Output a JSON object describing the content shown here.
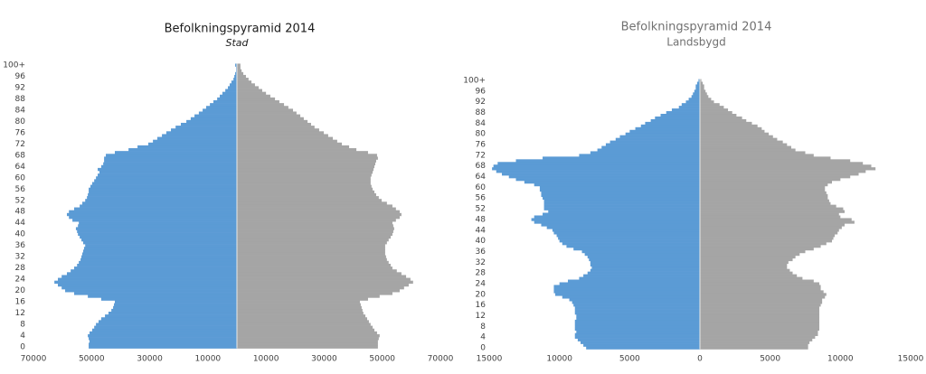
{
  "chart_data": [
    {
      "type": "bar",
      "orientation": "horizontal",
      "title": "Befolkningspyramid 2014",
      "subtitle": "Stad",
      "categories": [
        "0",
        null,
        null,
        null,
        "4",
        null,
        null,
        null,
        "8",
        null,
        null,
        null,
        "12",
        null,
        null,
        null,
        "16",
        null,
        null,
        null,
        "20",
        null,
        null,
        null,
        "24",
        null,
        null,
        null,
        "28",
        null,
        null,
        null,
        "32",
        null,
        null,
        null,
        "36",
        null,
        null,
        null,
        "40",
        null,
        null,
        null,
        "44",
        null,
        null,
        null,
        "48",
        null,
        null,
        null,
        "52",
        null,
        null,
        null,
        "56",
        null,
        null,
        null,
        "60",
        null,
        null,
        null,
        "64",
        null,
        null,
        null,
        "68",
        null,
        null,
        null,
        "72",
        null,
        null,
        null,
        "76",
        null,
        null,
        null,
        "80",
        null,
        null,
        null,
        "84",
        null,
        null,
        null,
        "88",
        null,
        null,
        null,
        "92",
        null,
        null,
        null,
        "96",
        null,
        null,
        null,
        "100+"
      ],
      "series": [
        {
          "color": "#5b9bd5",
          "values": [
            -51000,
            -51000,
            -50700,
            -51000,
            -51300,
            -50700,
            -49800,
            -49100,
            -48500,
            -47600,
            -46700,
            -45400,
            -44200,
            -43200,
            -42600,
            -42300,
            -42000,
            -46700,
            -51300,
            -56000,
            -59100,
            -60300,
            -61600,
            -62800,
            -61600,
            -60300,
            -58500,
            -57200,
            -56000,
            -55000,
            -54400,
            -53800,
            -53500,
            -53200,
            -52900,
            -52600,
            -52200,
            -52900,
            -53500,
            -54100,
            -54700,
            -55000,
            -55400,
            -54700,
            -54400,
            -56600,
            -57800,
            -58500,
            -57800,
            -56000,
            -54100,
            -53200,
            -52200,
            -51600,
            -51300,
            -51000,
            -51000,
            -50400,
            -49800,
            -49100,
            -48500,
            -47900,
            -47300,
            -47900,
            -46700,
            -46000,
            -45700,
            -45700,
            -45100,
            -42000,
            -37300,
            -34200,
            -30500,
            -28900,
            -27400,
            -25800,
            -24300,
            -22700,
            -21100,
            -19300,
            -17400,
            -15900,
            -14600,
            -13100,
            -11800,
            -10600,
            -9300,
            -8100,
            -6800,
            -5900,
            -5000,
            -4000,
            -3100,
            -2500,
            -1900,
            -1200,
            -900,
            -600,
            -300,
            -300,
            -600
          ]
        },
        {
          "color": "#a5a5a5",
          "values": [
            48500,
            48500,
            48500,
            48800,
            49100,
            48200,
            47300,
            46700,
            46000,
            45400,
            44800,
            44200,
            43500,
            43200,
            42900,
            42600,
            42300,
            45100,
            49100,
            53500,
            56000,
            57500,
            59100,
            60600,
            59700,
            58200,
            56600,
            55000,
            53500,
            52900,
            52200,
            51600,
            51300,
            51000,
            51000,
            51000,
            51000,
            51600,
            52200,
            52900,
            53500,
            53800,
            54100,
            53800,
            53500,
            54700,
            56000,
            56600,
            56000,
            54700,
            53500,
            51600,
            49800,
            48800,
            47900,
            47300,
            46700,
            46300,
            46000,
            46000,
            46000,
            46300,
            46700,
            47000,
            47300,
            47600,
            47900,
            48500,
            48200,
            45100,
            41100,
            38600,
            36100,
            34500,
            33000,
            31400,
            29900,
            28300,
            26700,
            25500,
            24300,
            23000,
            21800,
            20500,
            19300,
            17700,
            16200,
            14600,
            13100,
            11500,
            10000,
            8700,
            7500,
            6200,
            5000,
            4000,
            3100,
            2200,
            1600,
            1200,
            1200
          ]
        }
      ],
      "xlim": [
        -70000,
        70000
      ],
      "xticks": [
        {
          "value": -70000,
          "label": "70000"
        },
        {
          "value": -50000,
          "label": "50000"
        },
        {
          "value": -30000,
          "label": "30000"
        },
        {
          "value": -10000,
          "label": "10000"
        },
        10000,
        30000,
        50000,
        70000
      ]
    },
    {
      "type": "bar",
      "orientation": "horizontal",
      "title": "Befolkningspyramid 2014",
      "subtitle": "Landsbygd",
      "categories": [
        "0",
        null,
        null,
        null,
        "4",
        null,
        null,
        null,
        "8",
        null,
        null,
        null,
        "12",
        null,
        null,
        null,
        "16",
        null,
        null,
        null,
        "20",
        null,
        null,
        null,
        "24",
        null,
        null,
        null,
        "28",
        null,
        null,
        null,
        "32",
        null,
        null,
        null,
        "36",
        null,
        null,
        null,
        "40",
        null,
        null,
        null,
        "44",
        null,
        null,
        null,
        "48",
        null,
        null,
        null,
        "52",
        null,
        null,
        null,
        "56",
        null,
        null,
        null,
        "60",
        null,
        null,
        null,
        "64",
        null,
        null,
        null,
        "68",
        null,
        null,
        null,
        "72",
        null,
        null,
        null,
        "76",
        null,
        null,
        null,
        "80",
        null,
        null,
        null,
        "84",
        null,
        null,
        null,
        "88",
        null,
        null,
        null,
        "92",
        null,
        null,
        null,
        "96",
        null,
        null,
        null,
        "100+"
      ],
      "series": [
        {
          "color": "#5b9bd5",
          "values": [
            -8100,
            -8300,
            -8500,
            -8700,
            -8900,
            -8900,
            -8800,
            -8900,
            -8900,
            -8900,
            -8900,
            -8800,
            -8800,
            -8900,
            -8900,
            -8900,
            -9000,
            -9100,
            -9300,
            -9800,
            -10300,
            -10400,
            -10400,
            -10400,
            -10000,
            -9400,
            -8600,
            -8300,
            -8000,
            -7800,
            -7700,
            -7800,
            -7800,
            -7900,
            -8000,
            -8200,
            -8400,
            -9000,
            -9500,
            -9800,
            -10000,
            -10100,
            -10200,
            -10400,
            -10500,
            -10900,
            -11300,
            -11800,
            -12000,
            -11800,
            -11200,
            -10800,
            -11100,
            -11100,
            -11100,
            -11100,
            -11200,
            -11300,
            -11300,
            -11400,
            -11400,
            -11800,
            -12500,
            -13100,
            -13600,
            -14100,
            -14500,
            -14800,
            -14700,
            -14400,
            -13100,
            -11200,
            -8600,
            -7800,
            -7300,
            -7000,
            -6700,
            -6400,
            -6000,
            -5700,
            -5300,
            -5000,
            -4600,
            -4200,
            -3900,
            -3500,
            -3200,
            -2800,
            -2400,
            -2000,
            -1500,
            -1300,
            -1000,
            -800,
            -600,
            -500,
            -400,
            -300,
            -300,
            -200,
            -100
          ]
        },
        {
          "color": "#a5a5a5",
          "values": [
            7700,
            7700,
            7800,
            8000,
            8200,
            8400,
            8400,
            8500,
            8500,
            8500,
            8500,
            8500,
            8500,
            8500,
            8500,
            8500,
            8600,
            8700,
            8700,
            8900,
            9000,
            8800,
            8600,
            8600,
            8500,
            8100,
            7300,
            6900,
            6600,
            6400,
            6200,
            6200,
            6300,
            6600,
            6800,
            7100,
            7500,
            8100,
            8600,
            9000,
            9400,
            9500,
            9600,
            9800,
            9900,
            10100,
            10300,
            11000,
            10800,
            10000,
            9900,
            10300,
            10200,
            9700,
            9300,
            9200,
            9100,
            9100,
            9000,
            8900,
            8900,
            9100,
            9400,
            10000,
            10700,
            11300,
            11800,
            12500,
            12200,
            11600,
            10700,
            9300,
            8100,
            7500,
            6800,
            6500,
            6200,
            5900,
            5500,
            5200,
            4900,
            4600,
            4400,
            4100,
            3700,
            3300,
            3000,
            2600,
            2300,
            2000,
            1700,
            1400,
            1000,
            800,
            600,
            500,
            400,
            300,
            300,
            200,
            100
          ]
        }
      ],
      "xlim": [
        -15000,
        15000
      ],
      "xticks": [
        {
          "value": -15000,
          "label": "15000"
        },
        {
          "value": -10000,
          "label": "10000"
        },
        {
          "value": -5000,
          "label": "5000"
        },
        0,
        5000,
        10000,
        15000
      ]
    }
  ]
}
